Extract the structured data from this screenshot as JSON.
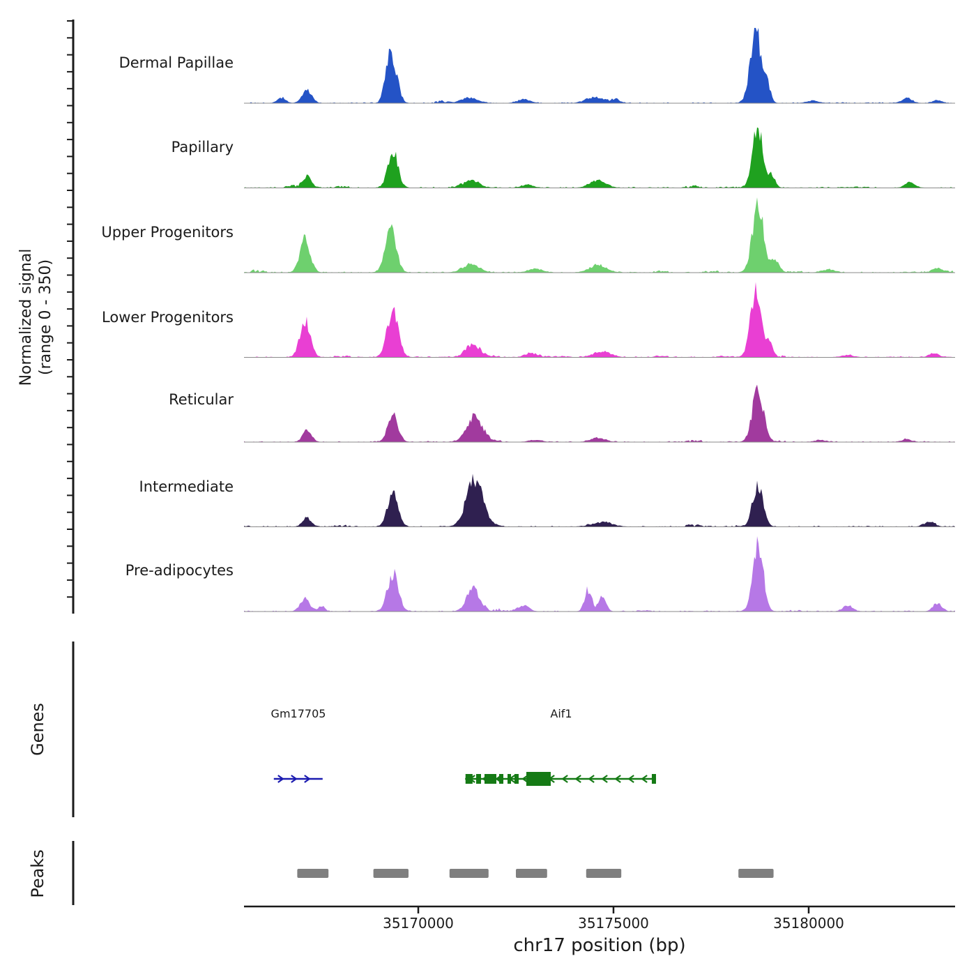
{
  "figure": {
    "ylabel_line1": "Normalized signal",
    "ylabel_line2": "(range 0 - 350)",
    "genes_section_label": "Genes",
    "peaks_section_label": "Peaks",
    "x_axis_title": "chr17 position (bp)"
  },
  "chart_data": {
    "type": "area",
    "title": "",
    "xlabel": "chr17 position (bp)",
    "ylabel": "Normalized signal (range 0 - 350)",
    "x_range": [
      35165536,
      35183750
    ],
    "x_ticks": [
      "35170000",
      "35175000",
      "35180000"
    ],
    "x_tick_values": [
      35170000,
      35175000,
      35180000
    ],
    "y_range_per_track": [
      0,
      350
    ],
    "grid": false,
    "legend": "none",
    "series": [
      {
        "name": "Dermal Papillae",
        "color": "#2453c6",
        "peaks": [
          [
            35166500,
            100,
            25
          ],
          [
            35167150,
            120,
            60
          ],
          [
            35169200,
            90,
            110
          ],
          [
            35169360,
            120,
            185
          ],
          [
            35171300,
            200,
            25
          ],
          [
            35172700,
            150,
            16
          ],
          [
            35174500,
            200,
            28
          ],
          [
            35175050,
            120,
            16
          ],
          [
            35178650,
            140,
            350
          ],
          [
            35178950,
            80,
            70
          ],
          [
            35180100,
            150,
            10
          ],
          [
            35182500,
            120,
            22
          ],
          [
            35183300,
            100,
            14
          ]
        ]
      },
      {
        "name": "Papillary",
        "color": "#1fa11f",
        "peaks": [
          [
            35167150,
            110,
            55
          ],
          [
            35169350,
            130,
            165
          ],
          [
            35171350,
            180,
            35
          ],
          [
            35172800,
            150,
            14
          ],
          [
            35174600,
            200,
            35
          ],
          [
            35178700,
            130,
            290
          ],
          [
            35179050,
            90,
            55
          ],
          [
            35182600,
            120,
            26
          ]
        ]
      },
      {
        "name": "Upper Progenitors",
        "color": "#6ed06e",
        "peaks": [
          [
            35167100,
            130,
            160
          ],
          [
            35169300,
            140,
            195
          ],
          [
            35171350,
            200,
            40
          ],
          [
            35173000,
            180,
            16
          ],
          [
            35174600,
            200,
            38
          ],
          [
            35178700,
            140,
            330
          ],
          [
            35179150,
            100,
            60
          ],
          [
            35180500,
            150,
            14
          ],
          [
            35183300,
            120,
            18
          ]
        ]
      },
      {
        "name": "Lower Progenitors",
        "color": "#e93fd3",
        "peaks": [
          [
            35167100,
            130,
            175
          ],
          [
            35169350,
            140,
            215
          ],
          [
            35171400,
            180,
            60
          ],
          [
            35172900,
            150,
            18
          ],
          [
            35174700,
            200,
            28
          ],
          [
            35178650,
            140,
            310
          ],
          [
            35178980,
            90,
            60
          ],
          [
            35181000,
            150,
            10
          ],
          [
            35183200,
            120,
            18
          ]
        ]
      },
      {
        "name": "Reticular",
        "color": "#a13a9e",
        "peaks": [
          [
            35167150,
            110,
            55
          ],
          [
            35169350,
            130,
            130
          ],
          [
            35171450,
            200,
            120
          ],
          [
            35173000,
            150,
            10
          ],
          [
            35174600,
            180,
            18
          ],
          [
            35178700,
            140,
            250
          ],
          [
            35180300,
            120,
            10
          ],
          [
            35182500,
            120,
            12
          ]
        ]
      },
      {
        "name": "Intermediate",
        "color": "#2f2050",
        "peaks": [
          [
            35167150,
            110,
            40
          ],
          [
            35169350,
            130,
            170
          ],
          [
            35171450,
            210,
            225
          ],
          [
            35174700,
            250,
            20
          ],
          [
            35178700,
            130,
            195
          ],
          [
            35183100,
            130,
            20
          ]
        ]
      },
      {
        "name": "Pre-adipocytes",
        "color": "#b678e6",
        "peaks": [
          [
            35167100,
            120,
            60
          ],
          [
            35167520,
            80,
            25
          ],
          [
            35169350,
            140,
            180
          ],
          [
            35171400,
            160,
            110
          ],
          [
            35172700,
            130,
            28
          ],
          [
            35174350,
            90,
            95
          ],
          [
            35174720,
            90,
            70
          ],
          [
            35178700,
            130,
            330
          ],
          [
            35181000,
            120,
            28
          ],
          [
            35183300,
            110,
            40
          ]
        ]
      }
    ],
    "genes": [
      {
        "name": "Gm17705",
        "strand": "+",
        "color": "#1b1bb0",
        "start": 35166300,
        "end": 35167550,
        "thin_exons": [],
        "thick_exons": []
      },
      {
        "name": "Aif1",
        "strand": "-",
        "color": "#157a15",
        "start": 35171200,
        "end": 35176090,
        "thin_exons": [
          [
            35171210,
            35171390
          ],
          [
            35171482,
            35171607
          ],
          [
            35171696,
            35172000
          ],
          [
            35172071,
            35172179
          ],
          [
            35172286,
            35172375
          ],
          [
            35172464,
            35172571
          ],
          [
            35175982,
            35176089
          ]
        ],
        "thick_exons": [
          [
            35172768,
            35173393
          ]
        ]
      }
    ],
    "peak_regions": [
      [
        35166900,
        35167700
      ],
      [
        35168850,
        35169750
      ],
      [
        35170800,
        35171800
      ],
      [
        35172500,
        35173300
      ],
      [
        35174300,
        35175200
      ],
      [
        35178200,
        35179100
      ]
    ],
    "peak_region_color": "#7f7f7f"
  }
}
